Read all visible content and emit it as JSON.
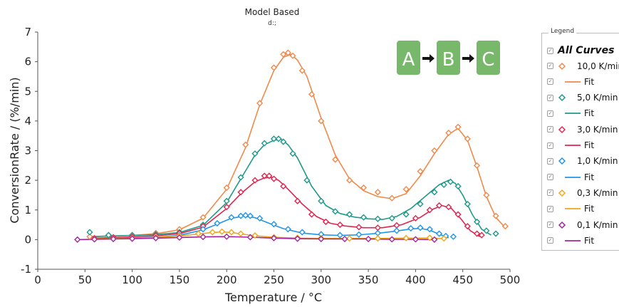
{
  "chart_data": {
    "type": "scatter",
    "title": "Model Based",
    "subtitle": "d:;",
    "xlabel": "Temperature / °C",
    "ylabel": "ConversionRate / (%/min)",
    "xlim": [
      0,
      500
    ],
    "ylim": [
      -1,
      7
    ],
    "x_ticks": [
      "0",
      "50",
      "100",
      "150",
      "200",
      "250",
      "300",
      "350",
      "400",
      "450",
      "500"
    ],
    "y_ticks": [
      "-1",
      "0",
      "1",
      "2",
      "3",
      "4",
      "5",
      "6",
      "7"
    ],
    "grid": false,
    "legend_position": "right",
    "series": [
      {
        "name": "10,0 K/min",
        "color": "#F08A4B",
        "x": [
          55,
          75,
          100,
          125,
          150,
          175,
          200,
          220,
          235,
          250,
          260,
          265,
          270,
          280,
          290,
          300,
          315,
          330,
          345,
          360,
          375,
          390,
          405,
          420,
          435,
          445,
          455,
          465,
          475,
          485,
          495
        ],
        "y": [
          0.1,
          0.15,
          0.15,
          0.22,
          0.35,
          0.75,
          1.75,
          3.2,
          4.6,
          5.8,
          6.25,
          6.3,
          6.2,
          5.7,
          4.9,
          4.0,
          2.7,
          2.0,
          1.75,
          1.6,
          1.4,
          1.7,
          2.3,
          3.0,
          3.6,
          3.8,
          3.4,
          2.5,
          1.5,
          0.8,
          0.45
        ]
      },
      {
        "name": "Fit",
        "color": "#F08A4B",
        "x": [
          55,
          75,
          100,
          125,
          150,
          175,
          200,
          220,
          235,
          250,
          260,
          268,
          275,
          285,
          300,
          315,
          330,
          345,
          360,
          375,
          390,
          405,
          420,
          435,
          445,
          455,
          465,
          475,
          485,
          495
        ],
        "y": [
          0.1,
          0.12,
          0.14,
          0.2,
          0.33,
          0.72,
          1.7,
          3.1,
          4.55,
          5.7,
          6.15,
          6.25,
          6.05,
          5.5,
          4.1,
          2.85,
          2.05,
          1.65,
          1.45,
          1.38,
          1.55,
          2.15,
          2.9,
          3.55,
          3.75,
          3.35,
          2.45,
          1.45,
          0.75,
          0.4
        ]
      },
      {
        "name": "5,0 K/min",
        "color": "#1F9A8A",
        "x": [
          55,
          75,
          100,
          125,
          150,
          175,
          200,
          215,
          230,
          240,
          250,
          255,
          260,
          270,
          285,
          300,
          315,
          330,
          345,
          360,
          375,
          390,
          405,
          420,
          430,
          437,
          445,
          455,
          465,
          475,
          485
        ],
        "y": [
          0.25,
          0.15,
          0.15,
          0.18,
          0.25,
          0.5,
          1.3,
          2.1,
          2.9,
          3.25,
          3.4,
          3.4,
          3.3,
          2.9,
          2.0,
          1.3,
          0.95,
          0.85,
          0.75,
          0.7,
          0.72,
          0.85,
          1.2,
          1.6,
          1.85,
          1.95,
          1.8,
          1.2,
          0.6,
          0.3,
          0.2
        ]
      },
      {
        "name": "Fit",
        "color": "#1F9A8A",
        "x": [
          55,
          75,
          100,
          125,
          150,
          175,
          200,
          215,
          230,
          240,
          250,
          258,
          265,
          275,
          290,
          305,
          320,
          335,
          350,
          365,
          380,
          395,
          410,
          425,
          435,
          442,
          450,
          460,
          470,
          480
        ],
        "y": [
          0.1,
          0.12,
          0.14,
          0.17,
          0.24,
          0.48,
          1.25,
          2.05,
          2.85,
          3.2,
          3.35,
          3.38,
          3.2,
          2.75,
          1.8,
          1.15,
          0.88,
          0.76,
          0.7,
          0.68,
          0.78,
          1.05,
          1.45,
          1.85,
          2.0,
          1.9,
          1.5,
          0.85,
          0.35,
          0.15
        ]
      },
      {
        "name": "3,0 K/min",
        "color": "#E0264F",
        "x": [
          60,
          80,
          100,
          125,
          150,
          175,
          200,
          215,
          230,
          240,
          245,
          250,
          260,
          275,
          290,
          305,
          320,
          340,
          360,
          380,
          400,
          415,
          425,
          435,
          445,
          455,
          465,
          470
        ],
        "y": [
          0.05,
          0.08,
          0.1,
          0.14,
          0.22,
          0.45,
          1.1,
          1.6,
          2.0,
          2.15,
          2.15,
          2.05,
          1.8,
          1.3,
          0.85,
          0.6,
          0.5,
          0.42,
          0.4,
          0.48,
          0.72,
          1.0,
          1.15,
          1.1,
          0.85,
          0.45,
          0.2,
          0.15
        ]
      },
      {
        "name": "Fit",
        "color": "#E0264F",
        "x": [
          60,
          80,
          100,
          125,
          150,
          175,
          200,
          215,
          230,
          240,
          248,
          255,
          265,
          280,
          295,
          310,
          325,
          345,
          365,
          385,
          405,
          418,
          428,
          438,
          448,
          458,
          468
        ],
        "y": [
          0.05,
          0.07,
          0.09,
          0.13,
          0.2,
          0.42,
          1.05,
          1.55,
          1.95,
          2.08,
          2.1,
          2.0,
          1.7,
          1.2,
          0.78,
          0.55,
          0.46,
          0.4,
          0.4,
          0.5,
          0.75,
          1.02,
          1.15,
          1.05,
          0.7,
          0.3,
          0.1
        ]
      },
      {
        "name": "1,0 K/min",
        "color": "#2196E8",
        "x": [
          60,
          80,
          100,
          125,
          150,
          175,
          190,
          205,
          215,
          220,
          225,
          235,
          250,
          265,
          280,
          300,
          320,
          340,
          360,
          380,
          395,
          405,
          415,
          425,
          432,
          440
        ],
        "y": [
          0.02,
          0.03,
          0.05,
          0.08,
          0.15,
          0.35,
          0.55,
          0.75,
          0.8,
          0.82,
          0.8,
          0.72,
          0.52,
          0.35,
          0.25,
          0.18,
          0.15,
          0.17,
          0.22,
          0.3,
          0.38,
          0.4,
          0.35,
          0.2,
          0.12,
          0.1
        ]
      },
      {
        "name": "Fit",
        "color": "#2196E8",
        "x": [
          60,
          80,
          100,
          125,
          150,
          175,
          190,
          205,
          218,
          230,
          245,
          260,
          280,
          300,
          320,
          340,
          360,
          380,
          395,
          405,
          415,
          425,
          435
        ],
        "y": [
          0.02,
          0.03,
          0.05,
          0.08,
          0.14,
          0.33,
          0.52,
          0.72,
          0.79,
          0.74,
          0.55,
          0.37,
          0.22,
          0.16,
          0.14,
          0.16,
          0.21,
          0.29,
          0.36,
          0.38,
          0.32,
          0.18,
          0.06
        ]
      },
      {
        "name": "0,3 K/min",
        "color": "#F2A516",
        "x": [
          60,
          80,
          100,
          125,
          150,
          170,
          185,
          195,
          205,
          215,
          230,
          250,
          275,
          300,
          330,
          360,
          390,
          415,
          430
        ],
        "y": [
          0.02,
          0.03,
          0.05,
          0.08,
          0.13,
          0.2,
          0.25,
          0.27,
          0.25,
          0.2,
          0.14,
          0.08,
          0.06,
          0.05,
          0.04,
          0.04,
          0.05,
          0.06,
          0.04
        ]
      },
      {
        "name": "Fit",
        "color": "#F2A516",
        "x": [
          60,
          80,
          100,
          125,
          150,
          170,
          185,
          195,
          205,
          215,
          230,
          250,
          275,
          300,
          330,
          360,
          390,
          415,
          432
        ],
        "y": [
          0.02,
          0.03,
          0.05,
          0.07,
          0.12,
          0.19,
          0.24,
          0.26,
          0.24,
          0.19,
          0.13,
          0.08,
          0.05,
          0.04,
          0.04,
          0.04,
          0.05,
          0.05,
          0.03
        ]
      },
      {
        "name": "0,1 K/min",
        "color": "#A2249C",
        "x": [
          42,
          60,
          80,
          100,
          125,
          150,
          175,
          200,
          225,
          250,
          275,
          300,
          325,
          350,
          375,
          400,
          420
        ],
        "y": [
          0.0,
          0.01,
          0.02,
          0.03,
          0.05,
          0.07,
          0.09,
          0.1,
          0.08,
          0.05,
          0.03,
          0.02,
          0.02,
          0.02,
          0.01,
          0.01,
          0.0
        ]
      },
      {
        "name": "Fit",
        "color": "#A2249C",
        "x": [
          42,
          60,
          80,
          100,
          125,
          150,
          175,
          200,
          225,
          250,
          275,
          300,
          325,
          350,
          375,
          400,
          420
        ],
        "y": [
          0.0,
          0.01,
          0.02,
          0.03,
          0.05,
          0.07,
          0.09,
          0.1,
          0.08,
          0.05,
          0.03,
          0.02,
          0.02,
          0.02,
          0.01,
          0.01,
          0.0
        ]
      }
    ]
  },
  "scheme": {
    "steps": [
      "A",
      "B",
      "C"
    ],
    "color": "#78B86B"
  },
  "legend": {
    "title": "Legend",
    "items": [
      {
        "label": "All Curves",
        "kind": "all",
        "color": ""
      },
      {
        "label": "10,0 K/min",
        "kind": "marker",
        "color": "#F08A4B"
      },
      {
        "label": "Fit",
        "kind": "line",
        "color": "#F08A4B"
      },
      {
        "label": "5,0 K/min",
        "kind": "marker",
        "color": "#1F9A8A"
      },
      {
        "label": "Fit",
        "kind": "line",
        "color": "#1F9A8A"
      },
      {
        "label": "3,0 K/min",
        "kind": "marker",
        "color": "#E0264F"
      },
      {
        "label": "Fit",
        "kind": "line",
        "color": "#E0264F"
      },
      {
        "label": "1,0 K/min",
        "kind": "marker",
        "color": "#2196E8"
      },
      {
        "label": "Fit",
        "kind": "line",
        "color": "#2196E8"
      },
      {
        "label": "0,3 K/min",
        "kind": "marker",
        "color": "#F2A516"
      },
      {
        "label": "Fit",
        "kind": "line",
        "color": "#F2A516"
      },
      {
        "label": "0,1 K/min",
        "kind": "marker",
        "color": "#A2249C"
      },
      {
        "label": "Fit",
        "kind": "line",
        "color": "#A2249C"
      }
    ]
  }
}
